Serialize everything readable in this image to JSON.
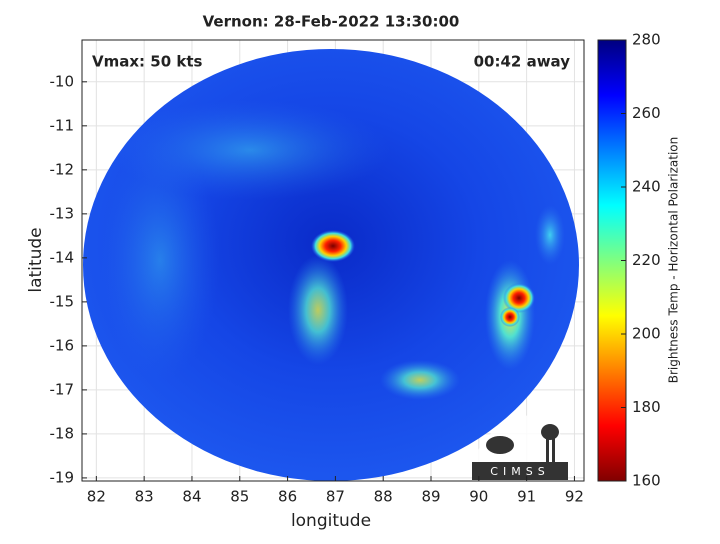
{
  "chart_data": {
    "type": "swath",
    "title": "Vernon: 28-Feb-2022 13:30:00",
    "annotations": [
      "Vmax: 50 kts",
      "00:42 away"
    ],
    "xlabel": "longitude",
    "ylabel": "latitude",
    "xlim": [
      81.7,
      92.2
    ],
    "xticks": [
      82,
      83,
      84,
      85,
      86,
      87,
      88,
      89,
      90,
      91,
      92
    ],
    "ylim": [
      -19.07,
      -9.05
    ],
    "yticks": [
      -19,
      -18,
      -17,
      -16,
      -15,
      -14,
      -13,
      -12,
      -11,
      -10
    ],
    "grid": true,
    "colorbar": {
      "label": "Brightness Temp - Horizontal Polarization",
      "lim": [
        160,
        280
      ],
      "ticks": [
        160,
        180,
        200,
        220,
        240,
        260,
        280
      ],
      "reversed_jet": true
    },
    "logo": "CIMSS"
  }
}
